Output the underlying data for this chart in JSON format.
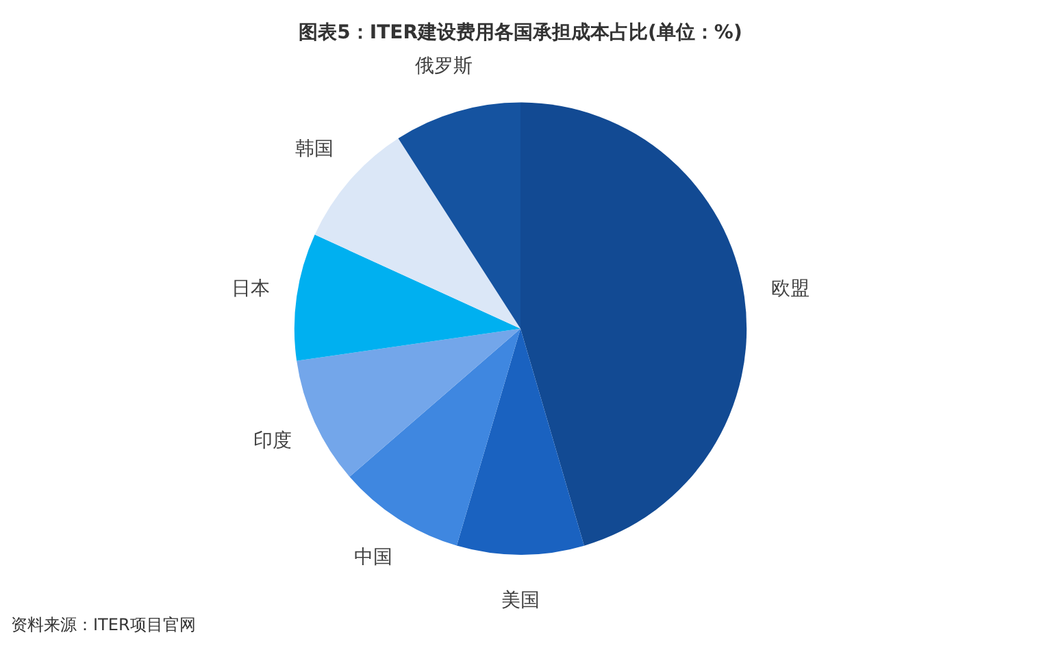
{
  "chart_data": {
    "type": "pie",
    "title": "图表5：ITER建设费用各国承担成本占比(单位：%)",
    "categories": [
      "欧盟",
      "美国",
      "中国",
      "印度",
      "日本",
      "韩国",
      "俄罗斯"
    ],
    "values": [
      45.46,
      9.09,
      9.09,
      9.09,
      9.09,
      9.09,
      9.09
    ],
    "colors": [
      "#124a93",
      "#1a62c0",
      "#3f87e0",
      "#73a6ea",
      "#00b0f0",
      "#dbe7f7",
      "#1553a0"
    ],
    "legend": false,
    "annotations": [
      "资料来源：ITER项目官网"
    ]
  }
}
